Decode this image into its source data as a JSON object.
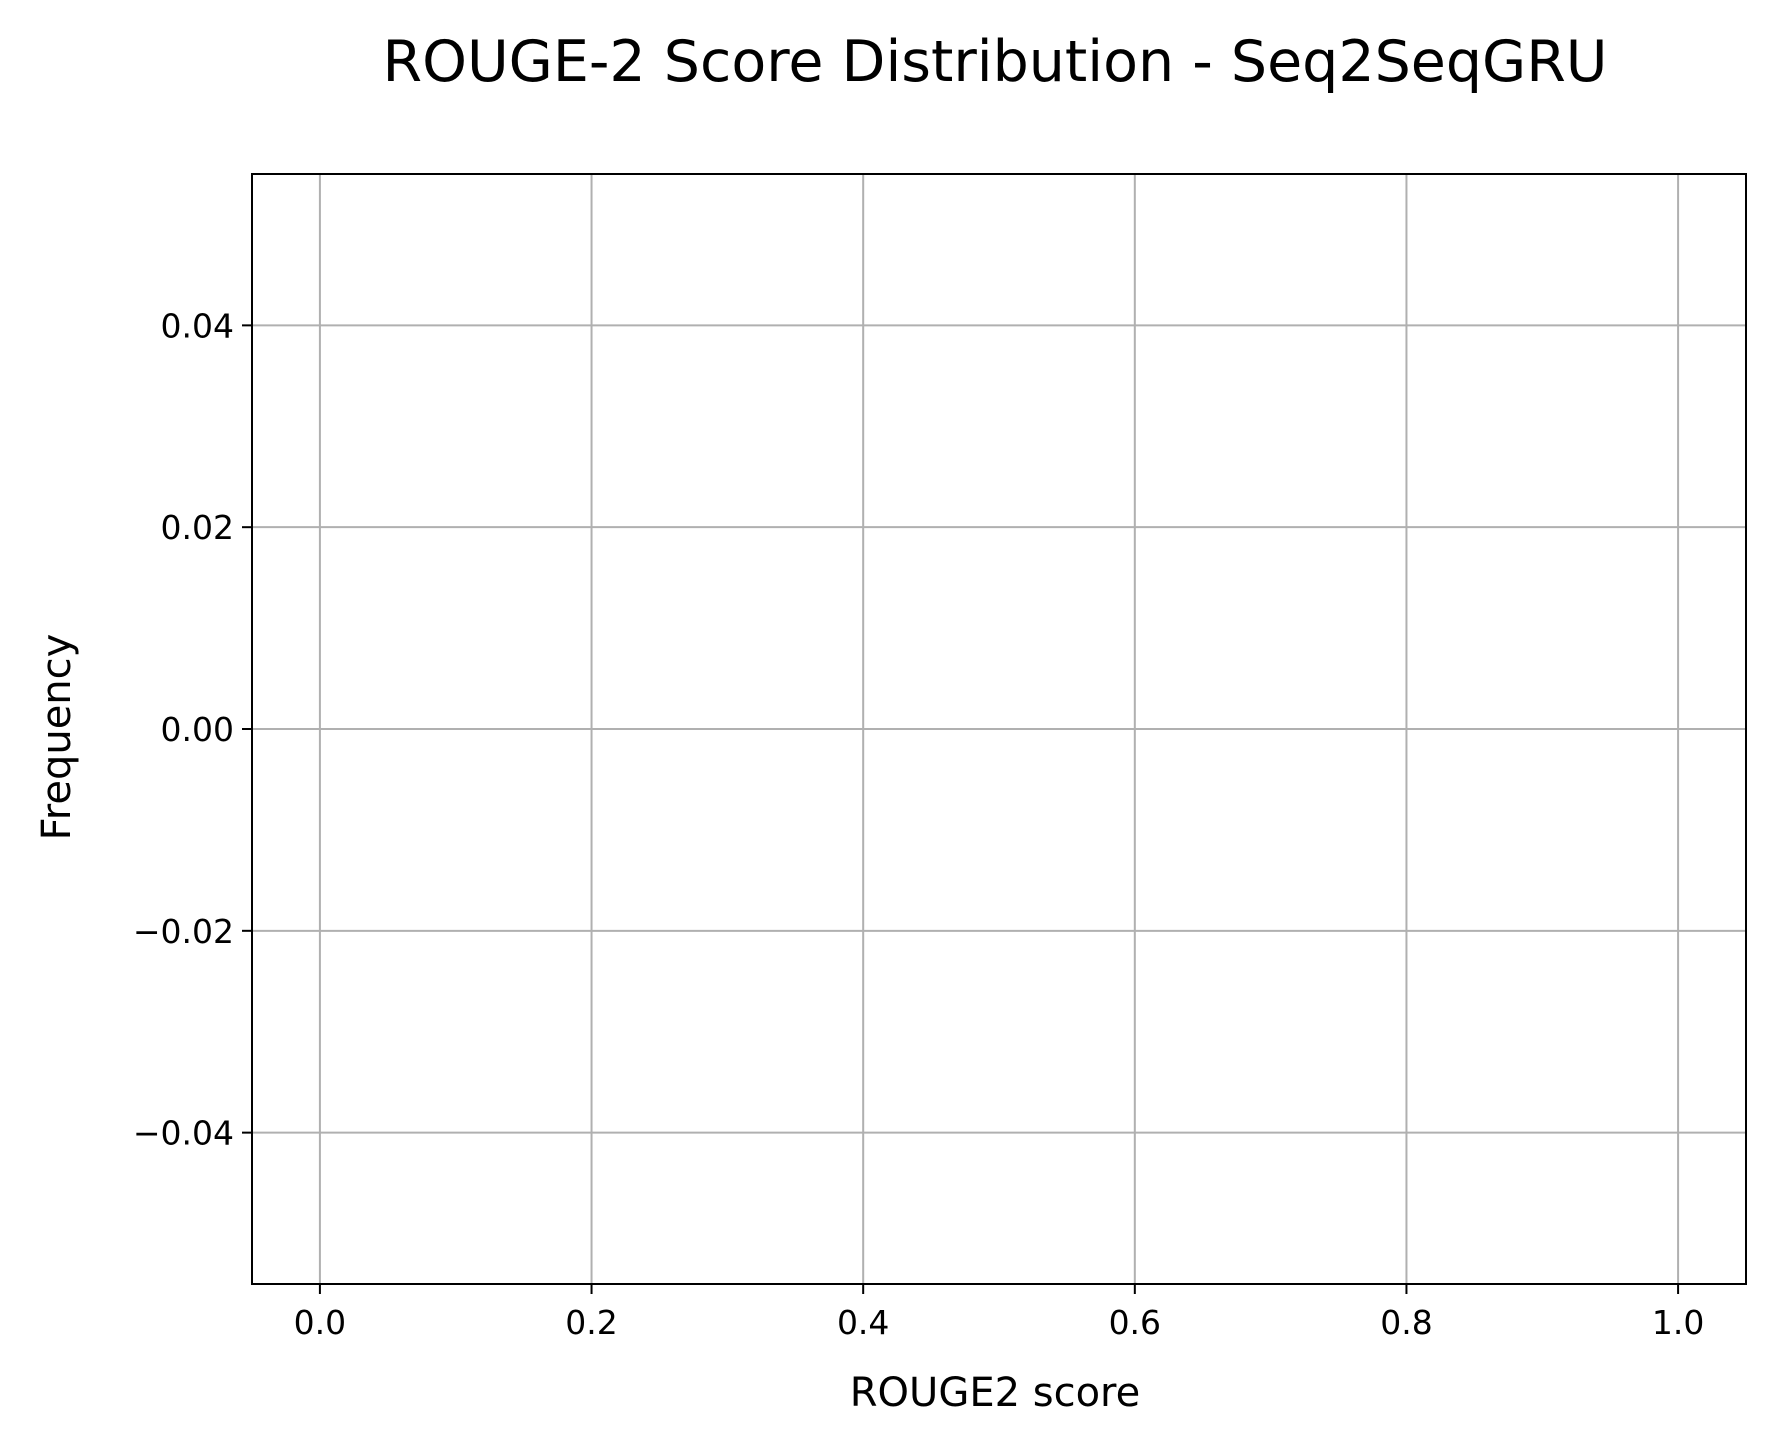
{
  "chart_data": {
    "type": "bar",
    "title": "ROUGE-2 Score Distribution - Seq2SeqGRU",
    "xlabel": "ROUGE2 score",
    "ylabel": "Frequency",
    "xlim": [
      -0.05,
      1.05
    ],
    "ylim": [
      -0.055,
      0.055
    ],
    "x_ticks": [
      0.0,
      0.2,
      0.4,
      0.6,
      0.8,
      1.0
    ],
    "x_tick_labels": [
      "0.0",
      "0.2",
      "0.4",
      "0.6",
      "0.8",
      "1.0"
    ],
    "y_ticks": [
      -0.04,
      -0.02,
      0.0,
      0.02,
      0.04
    ],
    "y_tick_labels": [
      "−0.04",
      "−0.02",
      "0.00",
      "0.02",
      "0.04"
    ],
    "grid": true,
    "series": [
      {
        "values": []
      }
    ],
    "colors": {
      "grid": "#b0b0b0",
      "axes": "#000000",
      "background": "#ffffff"
    }
  }
}
